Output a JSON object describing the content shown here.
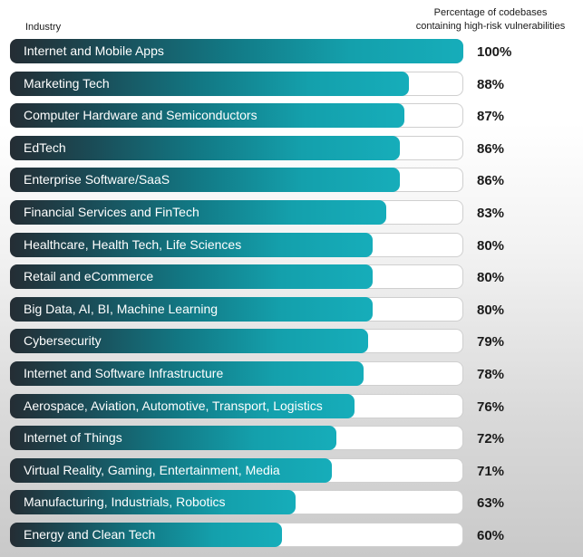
{
  "header": {
    "left": "Industry",
    "right_line1": "Percentage of codebases",
    "right_line2": "containing high-risk vulnerabilities"
  },
  "chart_data": {
    "type": "bar",
    "orientation": "horizontal",
    "xlim": [
      0,
      100
    ],
    "categories": [
      "Internet and Mobile Apps",
      "Marketing Tech",
      "Computer Hardware and Semiconductors",
      "EdTech",
      "Enterprise Software/SaaS",
      "Financial Services and FinTech",
      "Healthcare, Health Tech, Life Sciences",
      "Retail and eCommerce",
      "Big Data, AI, BI, Machine Learning",
      "Cybersecurity",
      "Internet and Software Infrastructure",
      "Aerospace, Aviation, Automotive, Transport, Logistics",
      "Internet of Things",
      "Virtual Reality, Gaming, Entertainment, Media",
      "Manufacturing, Industrials, Robotics",
      "Energy and Clean Tech"
    ],
    "values": [
      100,
      88,
      87,
      86,
      86,
      83,
      80,
      80,
      80,
      79,
      78,
      76,
      72,
      71,
      63,
      60
    ],
    "value_labels": [
      "100%",
      "88%",
      "87%",
      "86%",
      "86%",
      "83%",
      "80%",
      "80%",
      "80%",
      "79%",
      "78%",
      "76%",
      "72%",
      "71%",
      "63%",
      "60%"
    ],
    "grid": false,
    "legend": "none",
    "colors": {
      "bar_start": "#242d34",
      "bar_end": "#16adba",
      "track": "#ffffff"
    }
  }
}
